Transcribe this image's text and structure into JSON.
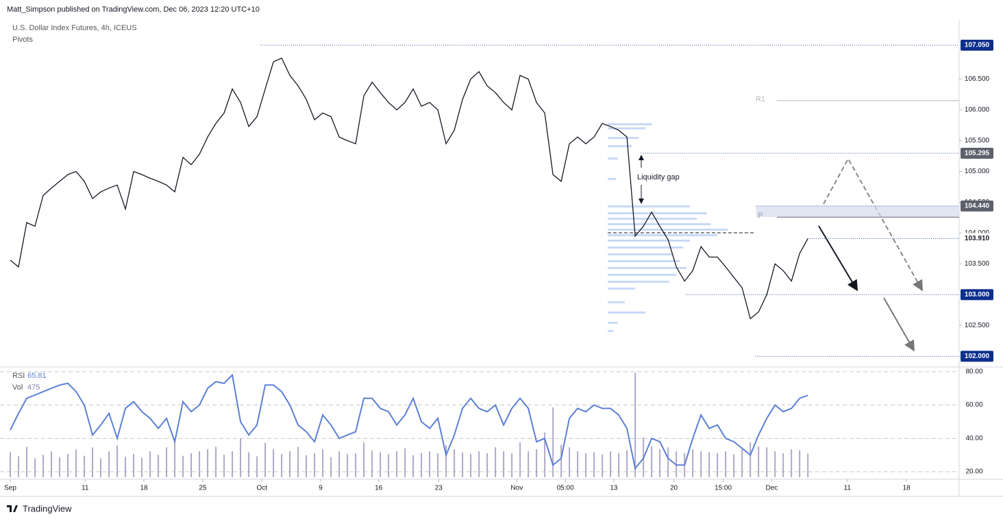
{
  "header": {
    "published": "Matt_Simpson published on TradingView.com, Dec 06, 2023 12:20 UTC+10",
    "symbol": "U.S. Dollar Index Futures, 4h, ICEUS",
    "indicator": "Pivots",
    "footer": "TradingView"
  },
  "chart_data": {
    "type": "line",
    "x": [
      0,
      1,
      2,
      3,
      4,
      5,
      6,
      7,
      8,
      9,
      10,
      11,
      12,
      13,
      14,
      15,
      16,
      17,
      18,
      19,
      20,
      21,
      22,
      23,
      24,
      25,
      26,
      27,
      28,
      29,
      30,
      31,
      32,
      33,
      34,
      35,
      36,
      37,
      38,
      39,
      40,
      41,
      42,
      43,
      44,
      45,
      46,
      47,
      48,
      49,
      50,
      51,
      52,
      53,
      54,
      55,
      56,
      57,
      58,
      59,
      60,
      61,
      62,
      63,
      64,
      65,
      66,
      67,
      68,
      69,
      70,
      71,
      72,
      73,
      74,
      75,
      76,
      77,
      78,
      79,
      80,
      81,
      82,
      83,
      84,
      85,
      86,
      87,
      88,
      89,
      90,
      91,
      92,
      93,
      94,
      95,
      96,
      97
    ],
    "xlim": [
      -0.42,
      115.4
    ],
    "xticks": [
      {
        "value": 0,
        "label": "Sep"
      },
      {
        "value": 9.1,
        "label": "11"
      },
      {
        "value": 16.25,
        "label": "18"
      },
      {
        "value": 23.4,
        "label": "25"
      },
      {
        "value": 30.6,
        "label": "Oct"
      },
      {
        "value": 37.75,
        "label": "9"
      },
      {
        "value": 44.8,
        "label": "16"
      },
      {
        "value": 52.1,
        "label": "23"
      },
      {
        "value": 61.6,
        "label": "Nov"
      },
      {
        "value": 67.5,
        "label": "05:00"
      },
      {
        "value": 73.4,
        "label": "13"
      },
      {
        "value": 80.7,
        "label": "20"
      },
      {
        "value": 86.7,
        "label": "15:00"
      },
      {
        "value": 92.6,
        "label": "Dec"
      },
      {
        "value": 101.8,
        "label": "11"
      },
      {
        "value": 109,
        "label": "18"
      }
    ],
    "ylim": [
      101.86,
      107.45
    ],
    "yticks": [
      {
        "value": 102.5,
        "label": "102.500"
      },
      {
        "value": 103.5,
        "label": "103.500"
      },
      {
        "value": 104,
        "label": "104.000"
      },
      {
        "value": 104.5,
        "label": "104.500"
      },
      {
        "value": 105,
        "label": "105.000"
      },
      {
        "value": 105.5,
        "label": "105.500"
      },
      {
        "value": 106,
        "label": "106.000"
      },
      {
        "value": 106.5,
        "label": "106.500"
      }
    ],
    "y2lim": [
      15.5,
      82
    ],
    "y2ticks": [
      {
        "value": 20,
        "label": "20.00"
      },
      {
        "value": 40,
        "label": "40.00"
      },
      {
        "value": 60,
        "label": "60.00"
      },
      {
        "value": 80,
        "label": "80.00"
      }
    ],
    "vlim": [
      0,
      2200
    ],
    "grid": false,
    "series": [
      {
        "name": "U.S. Dollar Index Futures",
        "type": "line",
        "color": "#131722",
        "values": [
          103.56,
          103.45,
          104.17,
          104.11,
          104.61,
          104.73,
          104.84,
          104.95,
          105.0,
          104.84,
          104.56,
          104.67,
          104.73,
          104.78,
          104.39,
          105.0,
          104.95,
          104.89,
          104.84,
          104.78,
          104.67,
          105.23,
          105.11,
          105.28,
          105.56,
          105.78,
          105.95,
          106.34,
          106.12,
          105.73,
          105.89,
          106.34,
          106.78,
          106.84,
          106.56,
          106.39,
          106.17,
          105.84,
          105.95,
          105.89,
          105.56,
          105.5,
          105.45,
          106.23,
          106.45,
          106.28,
          106.12,
          106.0,
          106.12,
          106.34,
          106.06,
          106.12,
          106.0,
          105.45,
          105.67,
          106.17,
          106.5,
          106.62,
          106.39,
          106.28,
          106.12,
          106.0,
          106.56,
          106.5,
          106.12,
          105.95,
          104.95,
          104.84,
          105.45,
          105.56,
          105.45,
          105.56,
          105.78,
          105.73,
          105.67,
          105.56,
          103.95,
          104.11,
          104.34,
          104.11,
          103.89,
          103.45,
          103.22,
          103.39,
          103.78,
          103.61,
          103.61,
          103.45,
          103.28,
          103.11,
          102.61,
          102.72,
          103.0,
          103.5,
          103.39,
          103.22,
          103.67,
          103.91
        ]
      },
      {
        "name": "RSI",
        "type": "line",
        "axis": "y2",
        "color": "#5b7fd6",
        "values": [
          45,
          55,
          64,
          66,
          68,
          70,
          72,
          73,
          68,
          60,
          42,
          48,
          55,
          40,
          58,
          62,
          56,
          52,
          46,
          52,
          38,
          62,
          56,
          60,
          70,
          74,
          73,
          78,
          50,
          42,
          48,
          72,
          72,
          68,
          60,
          48,
          44,
          38,
          54,
          48,
          40,
          42,
          44,
          64,
          64,
          58,
          56,
          48,
          54,
          64,
          50,
          46,
          52,
          30,
          42,
          58,
          64,
          58,
          56,
          60,
          48,
          58,
          64,
          58,
          38,
          40,
          24,
          28,
          52,
          58,
          56,
          60,
          58,
          58,
          54,
          46,
          22,
          28,
          40,
          38,
          28,
          24,
          24,
          40,
          54,
          46,
          48,
          40,
          38,
          34,
          30,
          42,
          52,
          60,
          56,
          58,
          64,
          65.81
        ]
      },
      {
        "name": "Vol",
        "type": "bar",
        "axis": "vol",
        "color": "#b2a6c8",
        "values": [
          500,
          420,
          610,
          380,
          450,
          520,
          400,
          470,
          560,
          430,
          600,
          380,
          520,
          640,
          410,
          470,
          390,
          520,
          450,
          600,
          700,
          430,
          480,
          520,
          560,
          610,
          450,
          520,
          780,
          500,
          420,
          690,
          560,
          470,
          520,
          610,
          440,
          480,
          560,
          400,
          520,
          460,
          480,
          700,
          540,
          500,
          460,
          520,
          580,
          440,
          490,
          520,
          480,
          640,
          560,
          500,
          470,
          520,
          480,
          600,
          520,
          480,
          700,
          520,
          560,
          900,
          1400,
          650,
          600,
          520,
          480,
          500,
          460,
          520,
          480,
          540,
          2100,
          800,
          620,
          560,
          600,
          520,
          480,
          560,
          520,
          500,
          480,
          520,
          460,
          560,
          700,
          620,
          600,
          520,
          480,
          560,
          540,
          475
        ]
      }
    ],
    "rsi_label": "RSI",
    "rsi_value": "65.81",
    "vol_label": "Vol",
    "vol_value": "475",
    "price_lines": [
      {
        "value": 107.05,
        "label": "107.050",
        "color": "#0d2f8c",
        "start": 30.4
      },
      {
        "value": 105.295,
        "label": "105.295",
        "color": "#5d606b",
        "start": 76.7
      },
      {
        "value": 104.44,
        "label": "104.440",
        "color": "#5d606b",
        "start": 90.7
      },
      {
        "value": 103.91,
        "label": "103.910",
        "color": "#ffffff",
        "start": 97
      },
      {
        "value": 103,
        "label": "103.000",
        "color": "#0d2f8c",
        "start": 82.1
      },
      {
        "value": 102,
        "label": "102.000",
        "color": "#0d2f8c",
        "start": 90.6
      }
    ],
    "pivots": [
      {
        "name": "R1",
        "value": 106.15
      },
      {
        "name": "P",
        "value": 104.26
      }
    ],
    "annotations": [
      {
        "text": "Liquidity gap"
      }
    ]
  }
}
